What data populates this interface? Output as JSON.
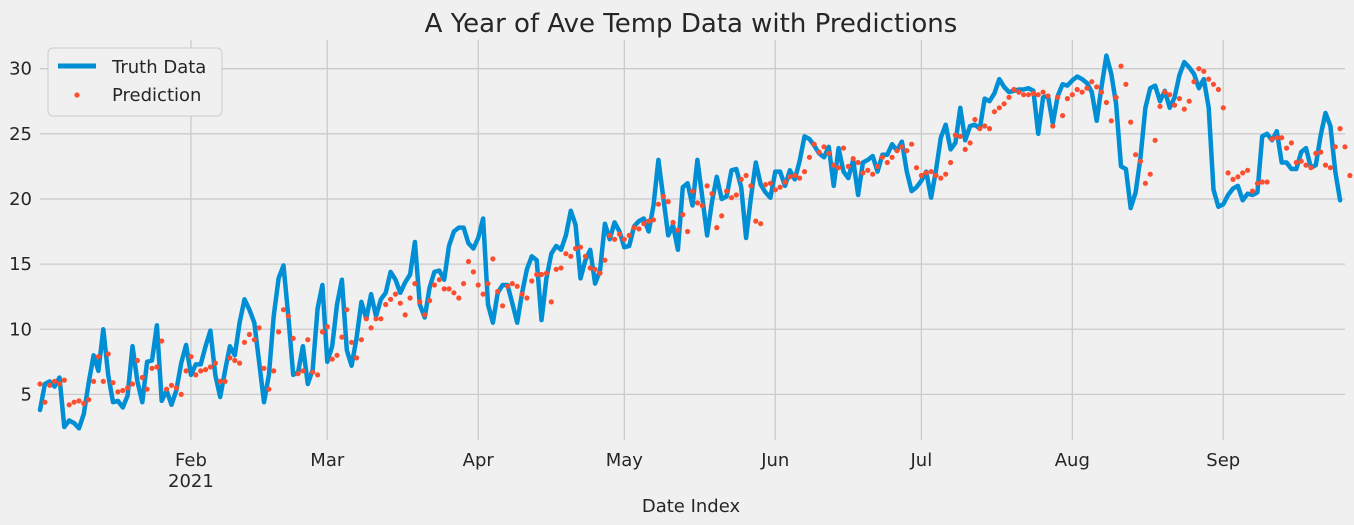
{
  "chart_data": {
    "type": "line",
    "title": "A Year of Ave Temp Data with Predictions",
    "xlabel": "Date Index",
    "ylabel": "",
    "x_range": [
      "2021-01-01",
      "2021-09-26"
    ],
    "ylim": [
      1.5,
      32.2
    ],
    "y_ticks": [
      5,
      10,
      15,
      20,
      25,
      30
    ],
    "x_ticks": [
      {
        "date": "2021-02-01",
        "label": "Feb",
        "sublabel": "2021"
      },
      {
        "date": "2021-03-01",
        "label": "Mar",
        "sublabel": ""
      },
      {
        "date": "2021-04-01",
        "label": "Apr",
        "sublabel": ""
      },
      {
        "date": "2021-05-01",
        "label": "May",
        "sublabel": ""
      },
      {
        "date": "2021-06-01",
        "label": "Jun",
        "sublabel": ""
      },
      {
        "date": "2021-07-01",
        "label": "Jul",
        "sublabel": ""
      },
      {
        "date": "2021-08-01",
        "label": "Aug",
        "sublabel": ""
      },
      {
        "date": "2021-09-01",
        "label": "Sep",
        "sublabel": ""
      }
    ],
    "grid": true,
    "legend_position": "top-left",
    "start_date": "2021-01-01",
    "series": [
      {
        "name": "Truth Data",
        "style": "line",
        "color": "#008fd5",
        "values": [
          3.8,
          5.8,
          6.0,
          5.6,
          6.3,
          2.5,
          3.0,
          2.8,
          2.4,
          3.5,
          5.9,
          8.0,
          6.8,
          10.0,
          6.5,
          4.4,
          4.5,
          4.0,
          4.9,
          8.7,
          6.0,
          4.4,
          7.5,
          7.6,
          10.3,
          4.5,
          5.3,
          4.2,
          5.3,
          7.4,
          8.8,
          6.5,
          7.3,
          7.3,
          8.7,
          9.9,
          6.5,
          4.8,
          6.8,
          8.7,
          8.0,
          10.5,
          12.3,
          11.5,
          10.5,
          7.5,
          4.4,
          6.5,
          11.0,
          13.9,
          14.9,
          11.0,
          6.5,
          6.7,
          8.7,
          5.8,
          6.9,
          11.6,
          13.4,
          7.5,
          8.7,
          11.9,
          13.8,
          8.4,
          7.2,
          9.3,
          12.1,
          10.8,
          12.7,
          11.0,
          12.3,
          12.8,
          14.4,
          13.8,
          12.8,
          13.6,
          14.2,
          16.7,
          11.9,
          10.9,
          13.2,
          14.4,
          14.5,
          13.8,
          16.4,
          17.5,
          17.8,
          17.8,
          16.6,
          16.2,
          17.0,
          18.5,
          11.9,
          10.5,
          12.8,
          13.4,
          13.4,
          12.0,
          10.5,
          12.8,
          14.6,
          15.6,
          15.3,
          10.7,
          13.9,
          15.8,
          16.4,
          16.1,
          17.2,
          19.1,
          18.0,
          13.9,
          15.3,
          16.1,
          13.5,
          14.5,
          18.1,
          16.9,
          18.2,
          17.5,
          16.3,
          16.4,
          17.9,
          18.3,
          18.5,
          17.5,
          19.5,
          23.0,
          20.1,
          17.2,
          18.0,
          16.1,
          20.9,
          21.2,
          19.5,
          23.0,
          20.2,
          17.2,
          19.8,
          21.7,
          20.0,
          20.2,
          22.2,
          22.3,
          20.9,
          17.0,
          20.1,
          22.8,
          21.1,
          20.5,
          20.1,
          22.1,
          22.1,
          21.0,
          22.2,
          21.5,
          22.9,
          24.8,
          24.6,
          24.1,
          23.5,
          23.2,
          24.0,
          21.0,
          23.9,
          22.1,
          21.6,
          23.0,
          20.3,
          22.8,
          23.0,
          23.3,
          22.1,
          23.4,
          23.4,
          24.2,
          23.7,
          24.4,
          22.1,
          20.6,
          20.9,
          21.4,
          22.1,
          20.1,
          22.2,
          24.7,
          25.7,
          23.8,
          24.3,
          27.0,
          24.5,
          25.6,
          25.7,
          25.4,
          27.7,
          27.5,
          28.1,
          29.2,
          28.6,
          28.2,
          28.3,
          28.4,
          28.4,
          28.5,
          28.3,
          25.0,
          27.8,
          27.9,
          25.8,
          27.9,
          28.8,
          28.7,
          29.1,
          29.4,
          29.2,
          28.9,
          28.2,
          26.0,
          28.6,
          31.0,
          29.6,
          27.3,
          22.5,
          22.3,
          19.3,
          20.5,
          23.2,
          27.0,
          28.5,
          28.7,
          27.5,
          28.3,
          27.0,
          27.8,
          29.5,
          30.5,
          30.1,
          29.6,
          28.5,
          29.2,
          27.0,
          20.7,
          19.4,
          19.6,
          20.3,
          20.8,
          21.0,
          19.9,
          20.4,
          20.3,
          20.5,
          24.8,
          25.0,
          24.5,
          25.2,
          22.8,
          22.8,
          22.3,
          22.3,
          23.6,
          23.9,
          22.4,
          22.6,
          24.9,
          26.6,
          25.6,
          22.1,
          19.9
        ]
      },
      {
        "name": "Prediction",
        "style": "points",
        "color": "#fc4f30",
        "values": [
          5.8,
          4.4,
          5.7,
          6.0,
          5.8,
          6.1,
          4.2,
          4.4,
          4.5,
          4.3,
          4.6,
          6.0,
          7.9,
          6.0,
          8.1,
          5.9,
          5.2,
          5.3,
          5.5,
          5.8,
          7.6,
          6.3,
          5.4,
          7.0,
          7.1,
          9.1,
          5.4,
          5.7,
          5.5,
          5.0,
          6.8,
          7.9,
          6.5,
          6.8,
          6.9,
          7.1,
          7.4,
          6.0,
          6.0,
          7.8,
          7.6,
          7.4,
          9.0,
          9.6,
          9.2,
          10.1,
          7.0,
          5.4,
          6.8,
          9.8,
          11.5,
          11.0,
          9.3,
          6.6,
          6.8,
          9.2,
          6.7,
          6.5,
          9.8,
          10.2,
          7.7,
          8.0,
          9.4,
          11.5,
          9.0,
          7.8,
          9.2,
          10.8,
          10.1,
          10.8,
          10.8,
          11.9,
          12.3,
          12.7,
          12.0,
          11.1,
          12.4,
          13.5,
          12.1,
          11.1,
          12.2,
          13.4,
          13.8,
          13.1,
          13.1,
          12.8,
          12.4,
          13.5,
          15.2,
          14.4,
          13.4,
          12.7,
          13.5,
          15.4,
          12.9,
          11.8,
          13.3,
          13.5,
          13.3,
          12.7,
          12.4,
          13.7,
          14.2,
          14.2,
          14.3,
          12.1,
          14.6,
          14.7,
          15.8,
          15.6,
          16.2,
          16.3,
          15.6,
          14.7,
          14.6,
          14.3,
          15.3,
          17.2,
          16.9,
          17.3,
          16.9,
          17.2,
          17.8,
          17.7,
          18.1,
          18.3,
          18.4,
          19.6,
          20.2,
          19.8,
          18.2,
          17.6,
          18.8,
          17.5,
          20.6,
          19.7,
          19.5,
          21.0,
          20.4,
          17.8,
          18.7,
          20.6,
          20.1,
          20.3,
          21.5,
          21.8,
          21.0,
          18.3,
          18.1,
          21.1,
          21.2,
          20.7,
          20.9,
          21.3,
          21.7,
          21.8,
          21.6,
          22.1,
          23.2,
          24.2,
          23.6,
          24.0,
          23.5,
          22.6,
          22.4,
          23.9,
          22.5,
          23.1,
          22.8,
          22.0,
          22.2,
          21.9,
          22.5,
          23.2,
          22.8,
          23.2,
          23.7,
          24.0,
          23.7,
          24.2,
          22.4,
          21.8,
          22.0,
          22.1,
          21.8,
          21.6,
          21.9,
          22.8,
          24.9,
          24.8,
          23.8,
          24.3,
          26.1,
          25.4,
          25.6,
          25.4,
          26.7,
          27.0,
          27.3,
          27.8,
          28.4,
          28.2,
          28.0,
          28.0,
          28.1,
          28.0,
          28.2,
          27.9,
          25.6,
          27.8,
          26.4,
          27.7,
          28.0,
          28.4,
          28.2,
          28.5,
          29.0,
          28.6,
          28.2,
          27.4,
          26.0,
          27.8,
          30.2,
          28.8,
          25.9,
          23.4,
          22.9,
          21.2,
          21.9,
          24.5,
          27.1,
          28.2,
          28.0,
          27.2,
          27.7,
          26.9,
          27.5,
          29.0,
          30.0,
          29.8,
          29.2,
          28.8,
          28.4,
          27.0,
          22.0,
          21.5,
          21.7,
          22.0,
          22.2,
          20.6,
          21.2,
          21.3,
          21.3,
          24.6,
          24.7,
          24.7,
          23.9,
          24.3,
          22.8,
          22.9,
          22.6,
          22.4,
          23.5,
          23.6,
          22.6,
          22.4,
          24.0,
          25.4,
          24.0,
          21.8
        ]
      }
    ]
  }
}
